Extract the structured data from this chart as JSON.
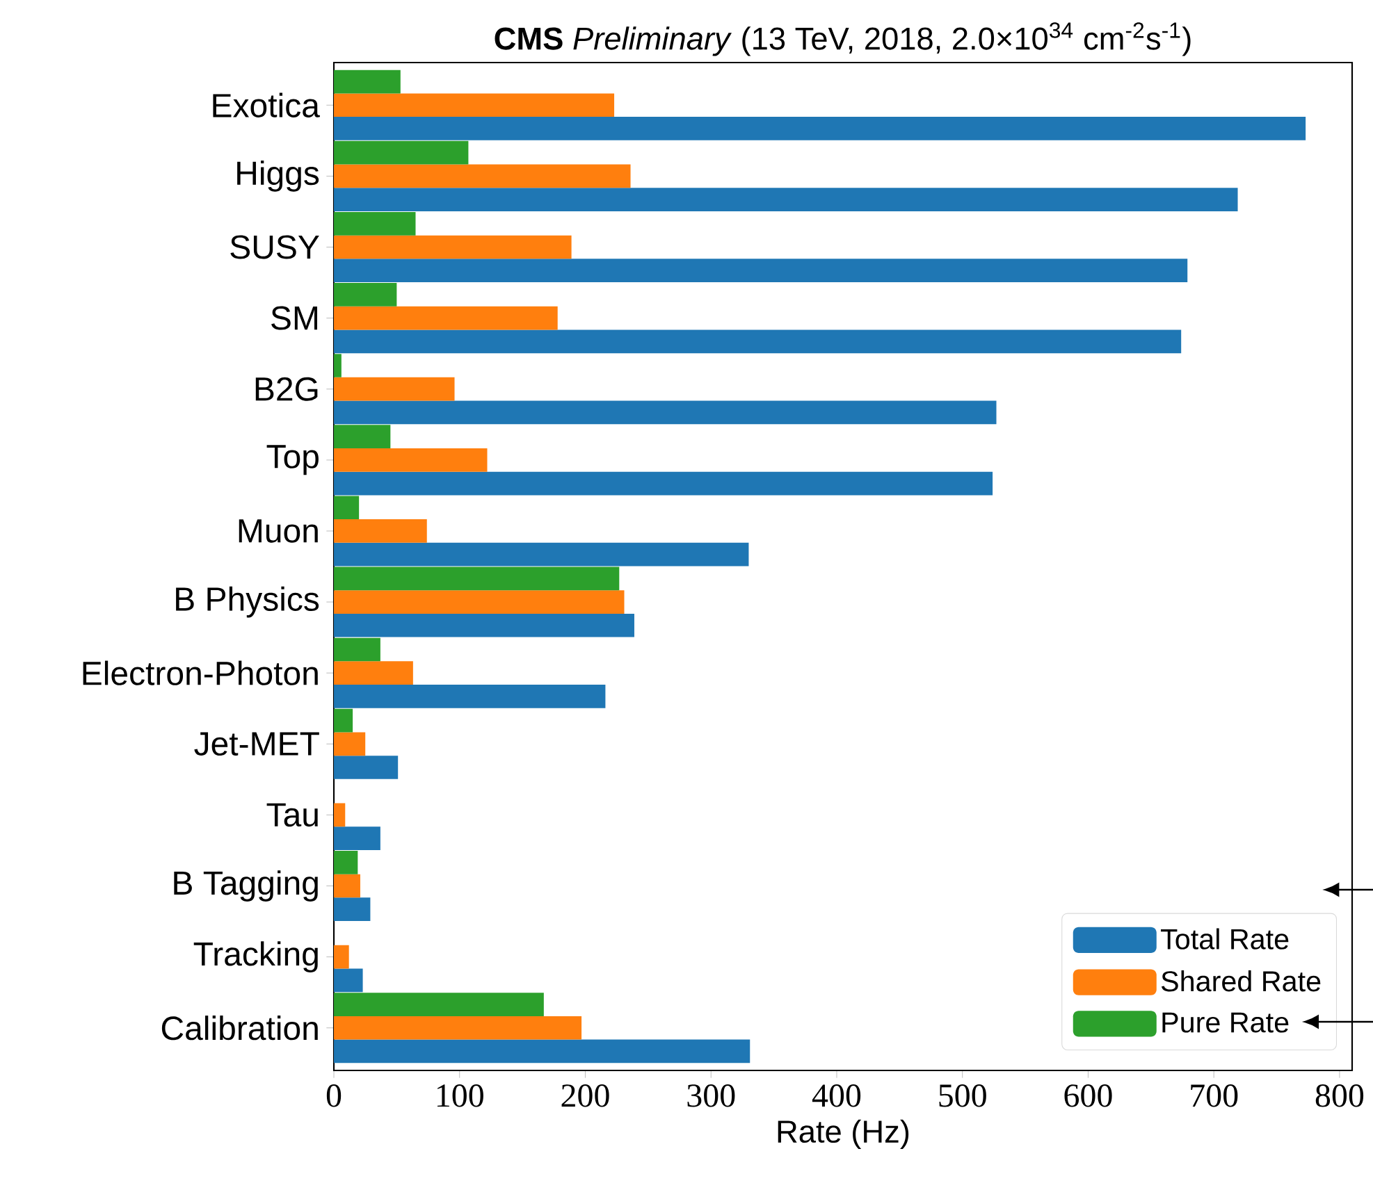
{
  "chart_data": {
    "type": "bar",
    "orientation": "horizontal",
    "title": "**CMS** *Preliminary* (13 TeV, 2018, 2.0×10$^{34}$ cm$^{-2}$s$^{-1}$)",
    "xlabel": "Rate (Hz)",
    "categories": [
      "Exotica",
      "Higgs",
      "SUSY",
      "SM",
      "B2G",
      "Top",
      "Muon",
      "B Physics",
      "Electron-Photon",
      "Jet-MET",
      "Tau",
      "B Tagging",
      "Tracking",
      "Calibration"
    ],
    "series": [
      {
        "name": "Total Rate",
        "color": "#1f77b4",
        "values": [
          773,
          719,
          679,
          674,
          527,
          524,
          330,
          239,
          216,
          51,
          37,
          29,
          23,
          331
        ]
      },
      {
        "name": "Shared Rate",
        "color": "#ff7f0e",
        "values": [
          223,
          236,
          189,
          178,
          96,
          122,
          74,
          231,
          63,
          25,
          9,
          21,
          12,
          197
        ]
      },
      {
        "name": "Pure Rate",
        "color": "#2ca02c",
        "values": [
          53,
          107,
          65,
          50,
          6,
          45,
          20,
          227,
          37,
          15,
          0,
          19,
          0,
          167
        ]
      }
    ],
    "xlim": [
      0,
      810
    ],
    "xticks": [
      0,
      100,
      200,
      300,
      400,
      500,
      600,
      700,
      800
    ],
    "legend": "bottom right"
  }
}
